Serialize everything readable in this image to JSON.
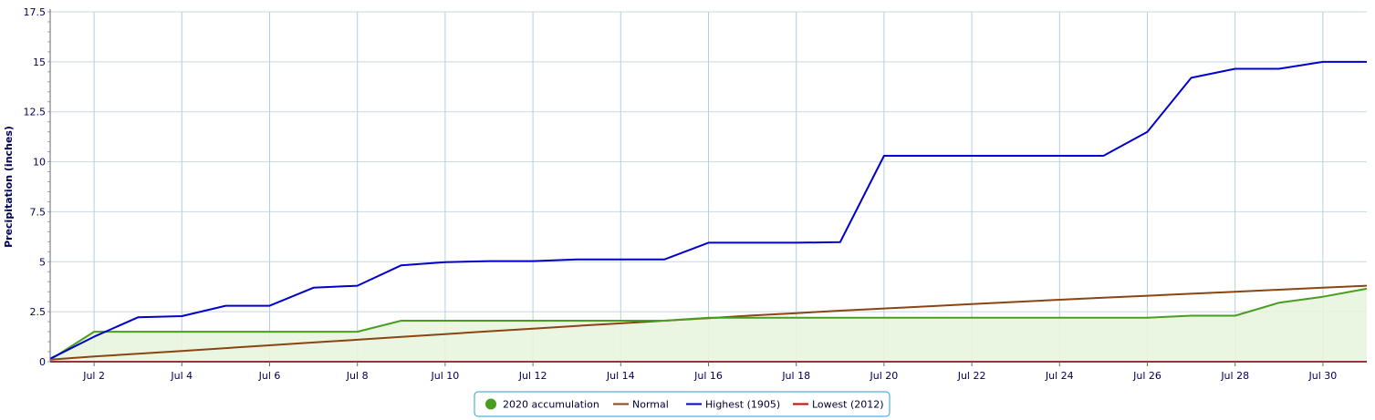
{
  "chart_data": {
    "type": "line",
    "ylabel": "Precipitation (inches)",
    "ylim": [
      0,
      17.5
    ],
    "yticks": [
      "0",
      "2.5",
      "5",
      "7.5",
      "10",
      "12.5",
      "15",
      "17.5"
    ],
    "xlim": [
      1,
      31
    ],
    "xticks": [
      {
        "day": 2,
        "label": "Jul 2"
      },
      {
        "day": 4,
        "label": "Jul 4"
      },
      {
        "day": 6,
        "label": "Jul 6"
      },
      {
        "day": 8,
        "label": "Jul 8"
      },
      {
        "day": 10,
        "label": "Jul 10"
      },
      {
        "day": 12,
        "label": "Jul 12"
      },
      {
        "day": 14,
        "label": "Jul 14"
      },
      {
        "day": 16,
        "label": "Jul 16"
      },
      {
        "day": 18,
        "label": "Jul 18"
      },
      {
        "day": 20,
        "label": "Jul 20"
      },
      {
        "day": 22,
        "label": "Jul 22"
      },
      {
        "day": 24,
        "label": "Jul 24"
      },
      {
        "day": 26,
        "label": "Jul 26"
      },
      {
        "day": 28,
        "label": "Jul 28"
      },
      {
        "day": 30,
        "label": "Jul 30"
      }
    ],
    "grid": true,
    "legend_position": "bottom-center",
    "x": [
      1,
      2,
      3,
      4,
      5,
      6,
      7,
      8,
      9,
      10,
      11,
      12,
      13,
      14,
      15,
      16,
      17,
      18,
      19,
      20,
      21,
      22,
      23,
      24,
      25,
      26,
      27,
      28,
      29,
      30,
      31
    ],
    "series": [
      {
        "name": "2020 accumulation",
        "color": "#4a9e1f",
        "fill": "#e8f4df",
        "marker": "circle",
        "values": [
          0.1,
          1.5,
          1.5,
          1.5,
          1.5,
          1.5,
          1.5,
          1.5,
          2.05,
          2.05,
          2.05,
          2.05,
          2.05,
          2.05,
          2.05,
          2.2,
          2.2,
          2.2,
          2.2,
          2.2,
          2.2,
          2.2,
          2.2,
          2.2,
          2.2,
          2.2,
          2.3,
          2.3,
          2.95,
          3.25,
          3.65
        ]
      },
      {
        "name": "Normal",
        "color": "#8b4513",
        "marker": "line",
        "values": [
          0.1,
          0.26,
          0.4,
          0.54,
          0.68,
          0.82,
          0.96,
          1.1,
          1.24,
          1.38,
          1.52,
          1.65,
          1.79,
          1.92,
          2.05,
          2.18,
          2.31,
          2.43,
          2.55,
          2.66,
          2.77,
          2.88,
          2.99,
          3.1,
          3.2,
          3.3,
          3.4,
          3.5,
          3.6,
          3.7,
          3.8
        ]
      },
      {
        "name": "Highest (1905)",
        "color": "#0000cc",
        "marker": "line",
        "values": [
          0.15,
          1.25,
          2.22,
          2.28,
          2.8,
          2.8,
          3.7,
          3.8,
          4.82,
          4.98,
          5.03,
          5.03,
          5.12,
          5.12,
          5.12,
          5.95,
          5.95,
          5.95,
          5.98,
          10.3,
          10.3,
          10.3,
          10.3,
          10.3,
          10.3,
          11.5,
          14.2,
          14.65,
          14.65,
          15.0,
          15.0
        ]
      },
      {
        "name": "Lowest (2012)",
        "color": "#cc0000",
        "marker": "line",
        "values": [
          0,
          0,
          0,
          0,
          0,
          0,
          0,
          0,
          0,
          0,
          0,
          0,
          0,
          0,
          0,
          0,
          0,
          0,
          0,
          0,
          0,
          0,
          0,
          0,
          0,
          0,
          0,
          0,
          0,
          0,
          0
        ]
      }
    ]
  }
}
